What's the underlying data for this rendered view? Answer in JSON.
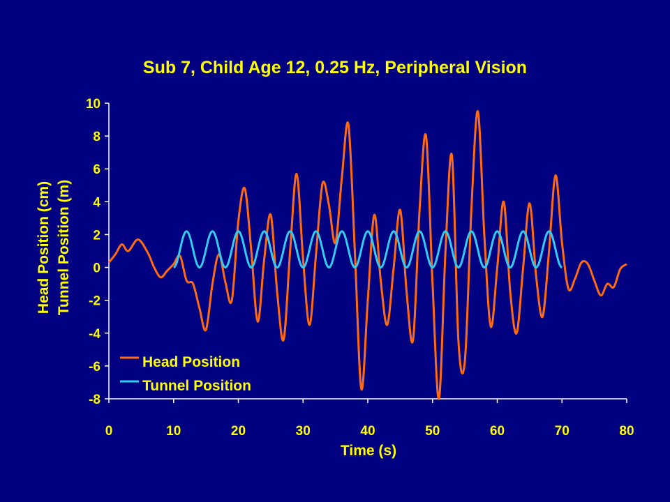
{
  "chart_data": {
    "type": "line",
    "title": "Sub 7, Child Age 12, 0.25 Hz, Peripheral Vision",
    "xlabel": "Time (s)",
    "ylabel": [
      "Head Position (cm)",
      "Tunnel Position (m)"
    ],
    "xlim": [
      0,
      80
    ],
    "ylim": [
      -8,
      10
    ],
    "x_ticks": [
      0,
      10,
      20,
      30,
      40,
      50,
      60,
      70,
      80
    ],
    "y_ticks": [
      -8,
      -6,
      -4,
      -2,
      0,
      2,
      4,
      6,
      8,
      10
    ],
    "grid": false,
    "legend_position": "bottom-left",
    "series": [
      {
        "name": "Head Position",
        "color": "#ff6a13",
        "x": [
          0,
          1,
          2,
          3,
          4.5,
          6,
          7,
          8,
          9,
          10,
          11,
          12,
          13,
          14,
          15,
          16,
          17,
          18,
          19,
          20,
          21,
          22,
          23,
          24,
          25,
          26,
          27,
          28,
          29,
          30,
          31,
          32,
          33,
          34,
          35,
          36,
          37,
          38,
          39,
          40,
          41,
          42,
          43,
          44,
          45,
          46,
          47,
          48,
          49,
          50,
          51,
          52,
          53,
          54,
          55,
          56,
          57,
          58,
          59,
          60,
          61,
          62,
          63,
          64,
          65,
          66,
          67,
          68,
          69,
          70,
          71,
          72,
          73,
          74,
          75,
          76,
          77,
          78,
          79,
          80
        ],
        "values": [
          0.3,
          0.8,
          1.4,
          1.0,
          1.7,
          0.9,
          0.0,
          -0.6,
          -0.2,
          0.2,
          0.7,
          -0.8,
          -1.0,
          -2.5,
          -3.8,
          -1.0,
          0.8,
          -0.9,
          -2.0,
          2.8,
          4.8,
          1.0,
          -3.3,
          0.5,
          3.2,
          -1.5,
          -4.4,
          1.0,
          5.7,
          0.5,
          -3.5,
          0.8,
          5.1,
          3.8,
          1.5,
          5.5,
          8.7,
          1.0,
          -7.4,
          -2.0,
          3.2,
          -0.8,
          -3.5,
          0.0,
          3.5,
          -1.5,
          -4.4,
          3.5,
          8.0,
          -1.0,
          -8.0,
          1.0,
          6.8,
          -4.5,
          -5.7,
          3.5,
          9.5,
          2.0,
          -3.6,
          0.0,
          4.0,
          -1.5,
          -4.0,
          0.0,
          3.9,
          -0.5,
          -3.0,
          1.0,
          5.6,
          1.5,
          -1.3,
          -0.7,
          0.3,
          0.2,
          -0.8,
          -1.7,
          -1.0,
          -1.2,
          -0.1,
          0.2
        ]
      },
      {
        "name": "Tunnel Position",
        "color": "#33ccee",
        "function": "1.1 * (1 - cos(2*pi*0.25*(t - 10)))",
        "x_range": [
          10,
          70
        ],
        "amplitude": 1.1,
        "offset": 1.1,
        "frequency_hz": 0.25
      }
    ]
  }
}
